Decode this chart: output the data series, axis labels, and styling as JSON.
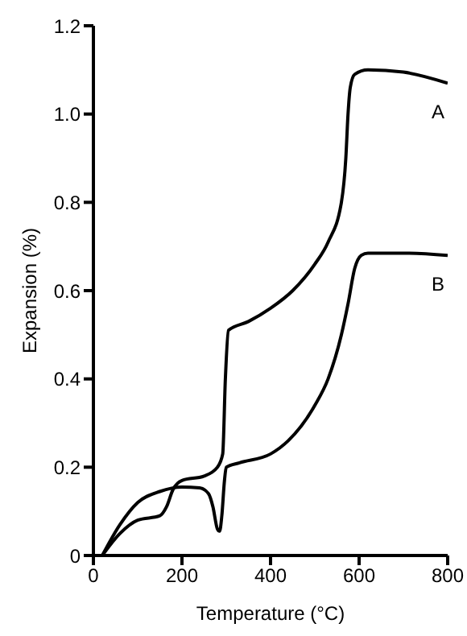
{
  "chart_data": {
    "type": "line",
    "xlabel": "Temperature (°C)",
    "ylabel": "Expansion (%)",
    "xlim": [
      0,
      800
    ],
    "xticks": [
      0,
      200,
      400,
      600,
      800
    ],
    "ylim": [
      0,
      1.2
    ],
    "yticks": [
      0,
      0.2,
      0.4,
      0.6,
      0.8,
      {
        "value": 1,
        "label": "1.0"
      },
      1.2
    ],
    "marker": "none",
    "line_style": "solid",
    "series": [
      {
        "name": "A",
        "color": "#000000",
        "x": [
          20,
          60,
          100,
          150,
          165,
          180,
          200,
          250,
          280,
          292,
          298,
          305,
          350,
          400,
          450,
          500,
          530,
          560,
          570,
          575,
          580,
          590,
          620,
          700,
          800
        ],
        "values": [
          0,
          0.05,
          0.08,
          0.09,
          0.11,
          0.15,
          0.17,
          0.18,
          0.2,
          0.23,
          0.4,
          0.51,
          0.53,
          0.56,
          0.6,
          0.66,
          0.71,
          0.8,
          0.9,
          1.0,
          1.06,
          1.09,
          1.1,
          1.095,
          1.07
        ]
      },
      {
        "name": "B",
        "color": "#000000",
        "x": [
          20,
          60,
          100,
          150,
          200,
          240,
          260,
          270,
          280,
          285,
          290,
          296,
          300,
          330,
          400,
          440,
          500,
          530,
          560,
          575,
          590,
          605,
          620,
          700,
          800
        ],
        "values": [
          0,
          0.07,
          0.12,
          0.145,
          0.155,
          0.153,
          0.14,
          0.11,
          0.06,
          0.055,
          0.09,
          0.17,
          0.2,
          0.21,
          0.23,
          0.26,
          0.34,
          0.4,
          0.5,
          0.57,
          0.65,
          0.68,
          0.685,
          0.685,
          0.68
        ]
      }
    ]
  }
}
